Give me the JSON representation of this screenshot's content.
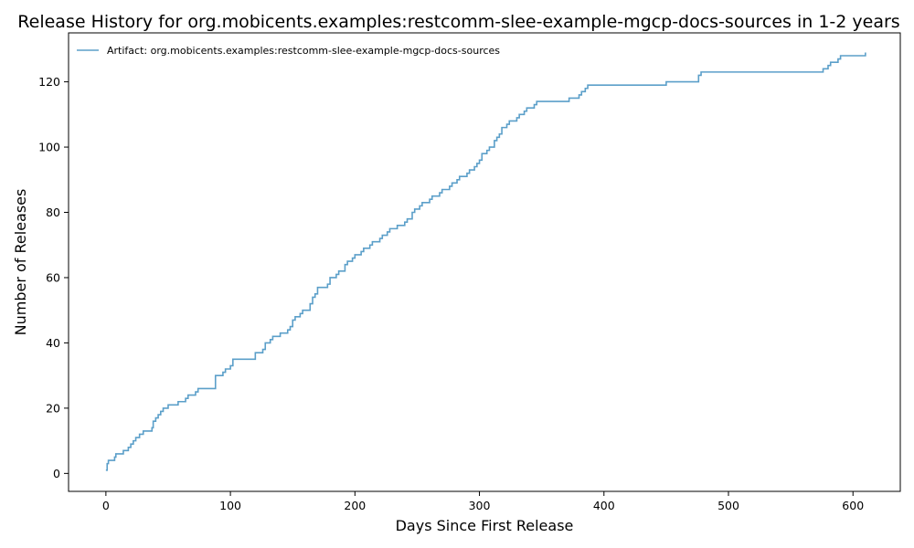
{
  "chart_data": {
    "type": "line",
    "step": true,
    "title": "Release History for org.mobicents.examples:restcomm-slee-example-mgcp-docs-sources in 1-2 years",
    "xlabel": "Days Since First Release",
    "ylabel": "Number of Releases",
    "xlim": [
      -30,
      638
    ],
    "ylim": [
      -5.5,
      135
    ],
    "xticks": [
      0,
      100,
      200,
      300,
      400,
      500,
      600
    ],
    "yticks": [
      0,
      20,
      40,
      60,
      80,
      100,
      120
    ],
    "grid": false,
    "legend_position": "top-left",
    "line_color": "#5b9fc9",
    "series": [
      {
        "name": "Artifact: org.mobicents.examples:restcomm-slee-example-mgcp-docs-sources",
        "x": [
          0,
          1,
          2,
          7,
          8,
          14,
          18,
          20,
          22,
          24,
          27,
          30,
          37,
          38,
          40,
          42,
          44,
          46,
          50,
          52,
          58,
          60,
          64,
          66,
          72,
          74,
          86,
          88,
          94,
          96,
          100,
          102,
          118,
          120,
          126,
          128,
          132,
          134,
          140,
          142,
          146,
          148,
          150,
          152,
          156,
          158,
          164,
          166,
          168,
          170,
          178,
          180,
          185,
          187,
          192,
          194,
          198,
          200,
          205,
          207,
          212,
          214,
          220,
          222,
          226,
          228,
          232,
          234,
          240,
          242,
          246,
          248,
          252,
          254,
          260,
          262,
          268,
          270,
          276,
          278,
          282,
          284,
          290,
          292,
          296,
          298,
          300,
          302,
          306,
          308,
          312,
          314,
          316,
          318,
          322,
          324,
          330,
          332,
          336,
          338,
          344,
          346,
          370,
          372,
          380,
          382,
          385,
          387,
          448,
          450,
          476,
          478,
          574,
          576,
          580,
          582,
          588,
          590,
          608,
          610
        ],
        "y": [
          1,
          3,
          4,
          5,
          6,
          7,
          8,
          9,
          10,
          11,
          12,
          13,
          14,
          16,
          17,
          18,
          19,
          20,
          21,
          21,
          22,
          22,
          23,
          24,
          25,
          26,
          26,
          30,
          31,
          32,
          33,
          35,
          35,
          37,
          38,
          40,
          41,
          42,
          43,
          43,
          44,
          45,
          47,
          48,
          49,
          50,
          52,
          54,
          55,
          57,
          58,
          60,
          61,
          62,
          64,
          65,
          66,
          67,
          68,
          69,
          70,
          71,
          72,
          73,
          74,
          75,
          75,
          76,
          77,
          78,
          80,
          81,
          82,
          83,
          84,
          85,
          86,
          87,
          88,
          89,
          90,
          91,
          92,
          93,
          94,
          95,
          96,
          98,
          99,
          100,
          102,
          103,
          104,
          106,
          107,
          108,
          109,
          110,
          111,
          112,
          113,
          114,
          114,
          115,
          116,
          117,
          118,
          119,
          119,
          120,
          122,
          123,
          123,
          124,
          125,
          126,
          127,
          128,
          128,
          129
        ]
      }
    ]
  }
}
